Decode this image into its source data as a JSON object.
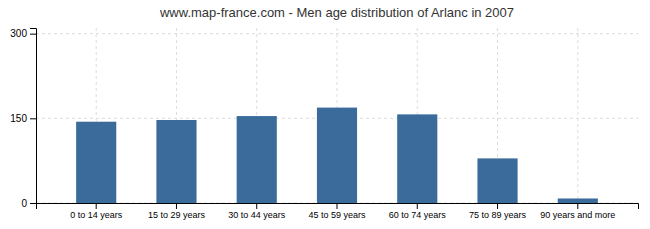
{
  "chart_data": {
    "type": "bar",
    "title": "www.map-france.com - Men age distribution of Arlanc in 2007",
    "categories": [
      "0 to 14 years",
      "15 to 29 years",
      "30 to 44 years",
      "45 to 59 years",
      "60 to 74 years",
      "75 to 89 years",
      "90 years and more"
    ],
    "values": [
      144,
      147,
      154,
      169,
      157,
      79,
      8
    ],
    "color": "#3a6b9a",
    "ylim": [
      0,
      310
    ],
    "yticks": [
      0,
      150,
      300
    ],
    "grid": true
  }
}
